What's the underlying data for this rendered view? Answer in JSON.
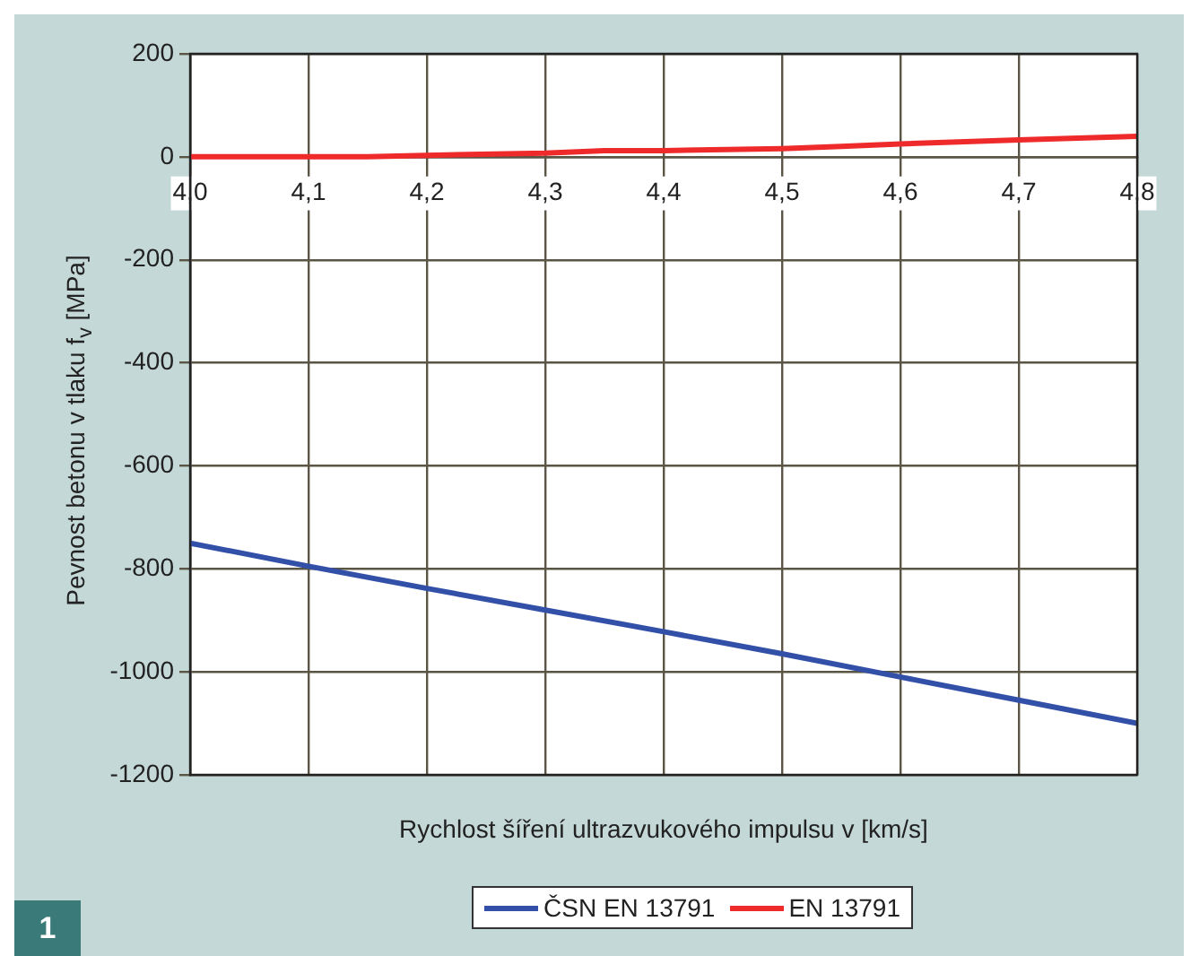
{
  "chart_data": {
    "type": "line",
    "xlabel": "Rychlost šíření ultrazvukového impulsu v [km/s]",
    "ylabel": "Pevnost betonu v tlaku f$_{v}$ [MPa]",
    "x": [
      4.0,
      4.1,
      4.2,
      4.3,
      4.4,
      4.5,
      4.6,
      4.7,
      4.8
    ],
    "series": [
      {
        "name": "ČSN EN 13791",
        "color": "#3350a8",
        "values": [
          -750,
          -795,
          -838,
          -880,
          -922,
          -965,
          -1010,
          -1055,
          -1100
        ]
      },
      {
        "name": "EN 13791",
        "color": "#ee2a2a",
        "x": [
          4.0,
          4.1,
          4.15,
          4.2,
          4.3,
          4.35,
          4.4,
          4.5,
          4.55,
          4.6,
          4.7,
          4.8
        ],
        "values": [
          0,
          0,
          0,
          3,
          7,
          12,
          12,
          16,
          20,
          25,
          33,
          40
        ]
      }
    ],
    "xlim": [
      4.0,
      4.8
    ],
    "xticks": [
      {
        "value": 4.0,
        "label": "4,0"
      },
      {
        "value": 4.1,
        "label": "4,1"
      },
      {
        "value": 4.2,
        "label": "4,2"
      },
      {
        "value": 4.3,
        "label": "4,3"
      },
      {
        "value": 4.4,
        "label": "4,4"
      },
      {
        "value": 4.5,
        "label": "4,5"
      },
      {
        "value": 4.6,
        "label": "4,6"
      },
      {
        "value": 4.7,
        "label": "4,7"
      },
      {
        "value": 4.8,
        "label": "4,8"
      }
    ],
    "ylim": [
      -1200,
      200
    ],
    "yticks": [
      -1200,
      -1000,
      -800,
      -600,
      -400,
      -200,
      0,
      200
    ],
    "grid": true,
    "legend": "bottom",
    "marker": "none",
    "line_style": "solid",
    "annotations": [
      "1"
    ]
  }
}
